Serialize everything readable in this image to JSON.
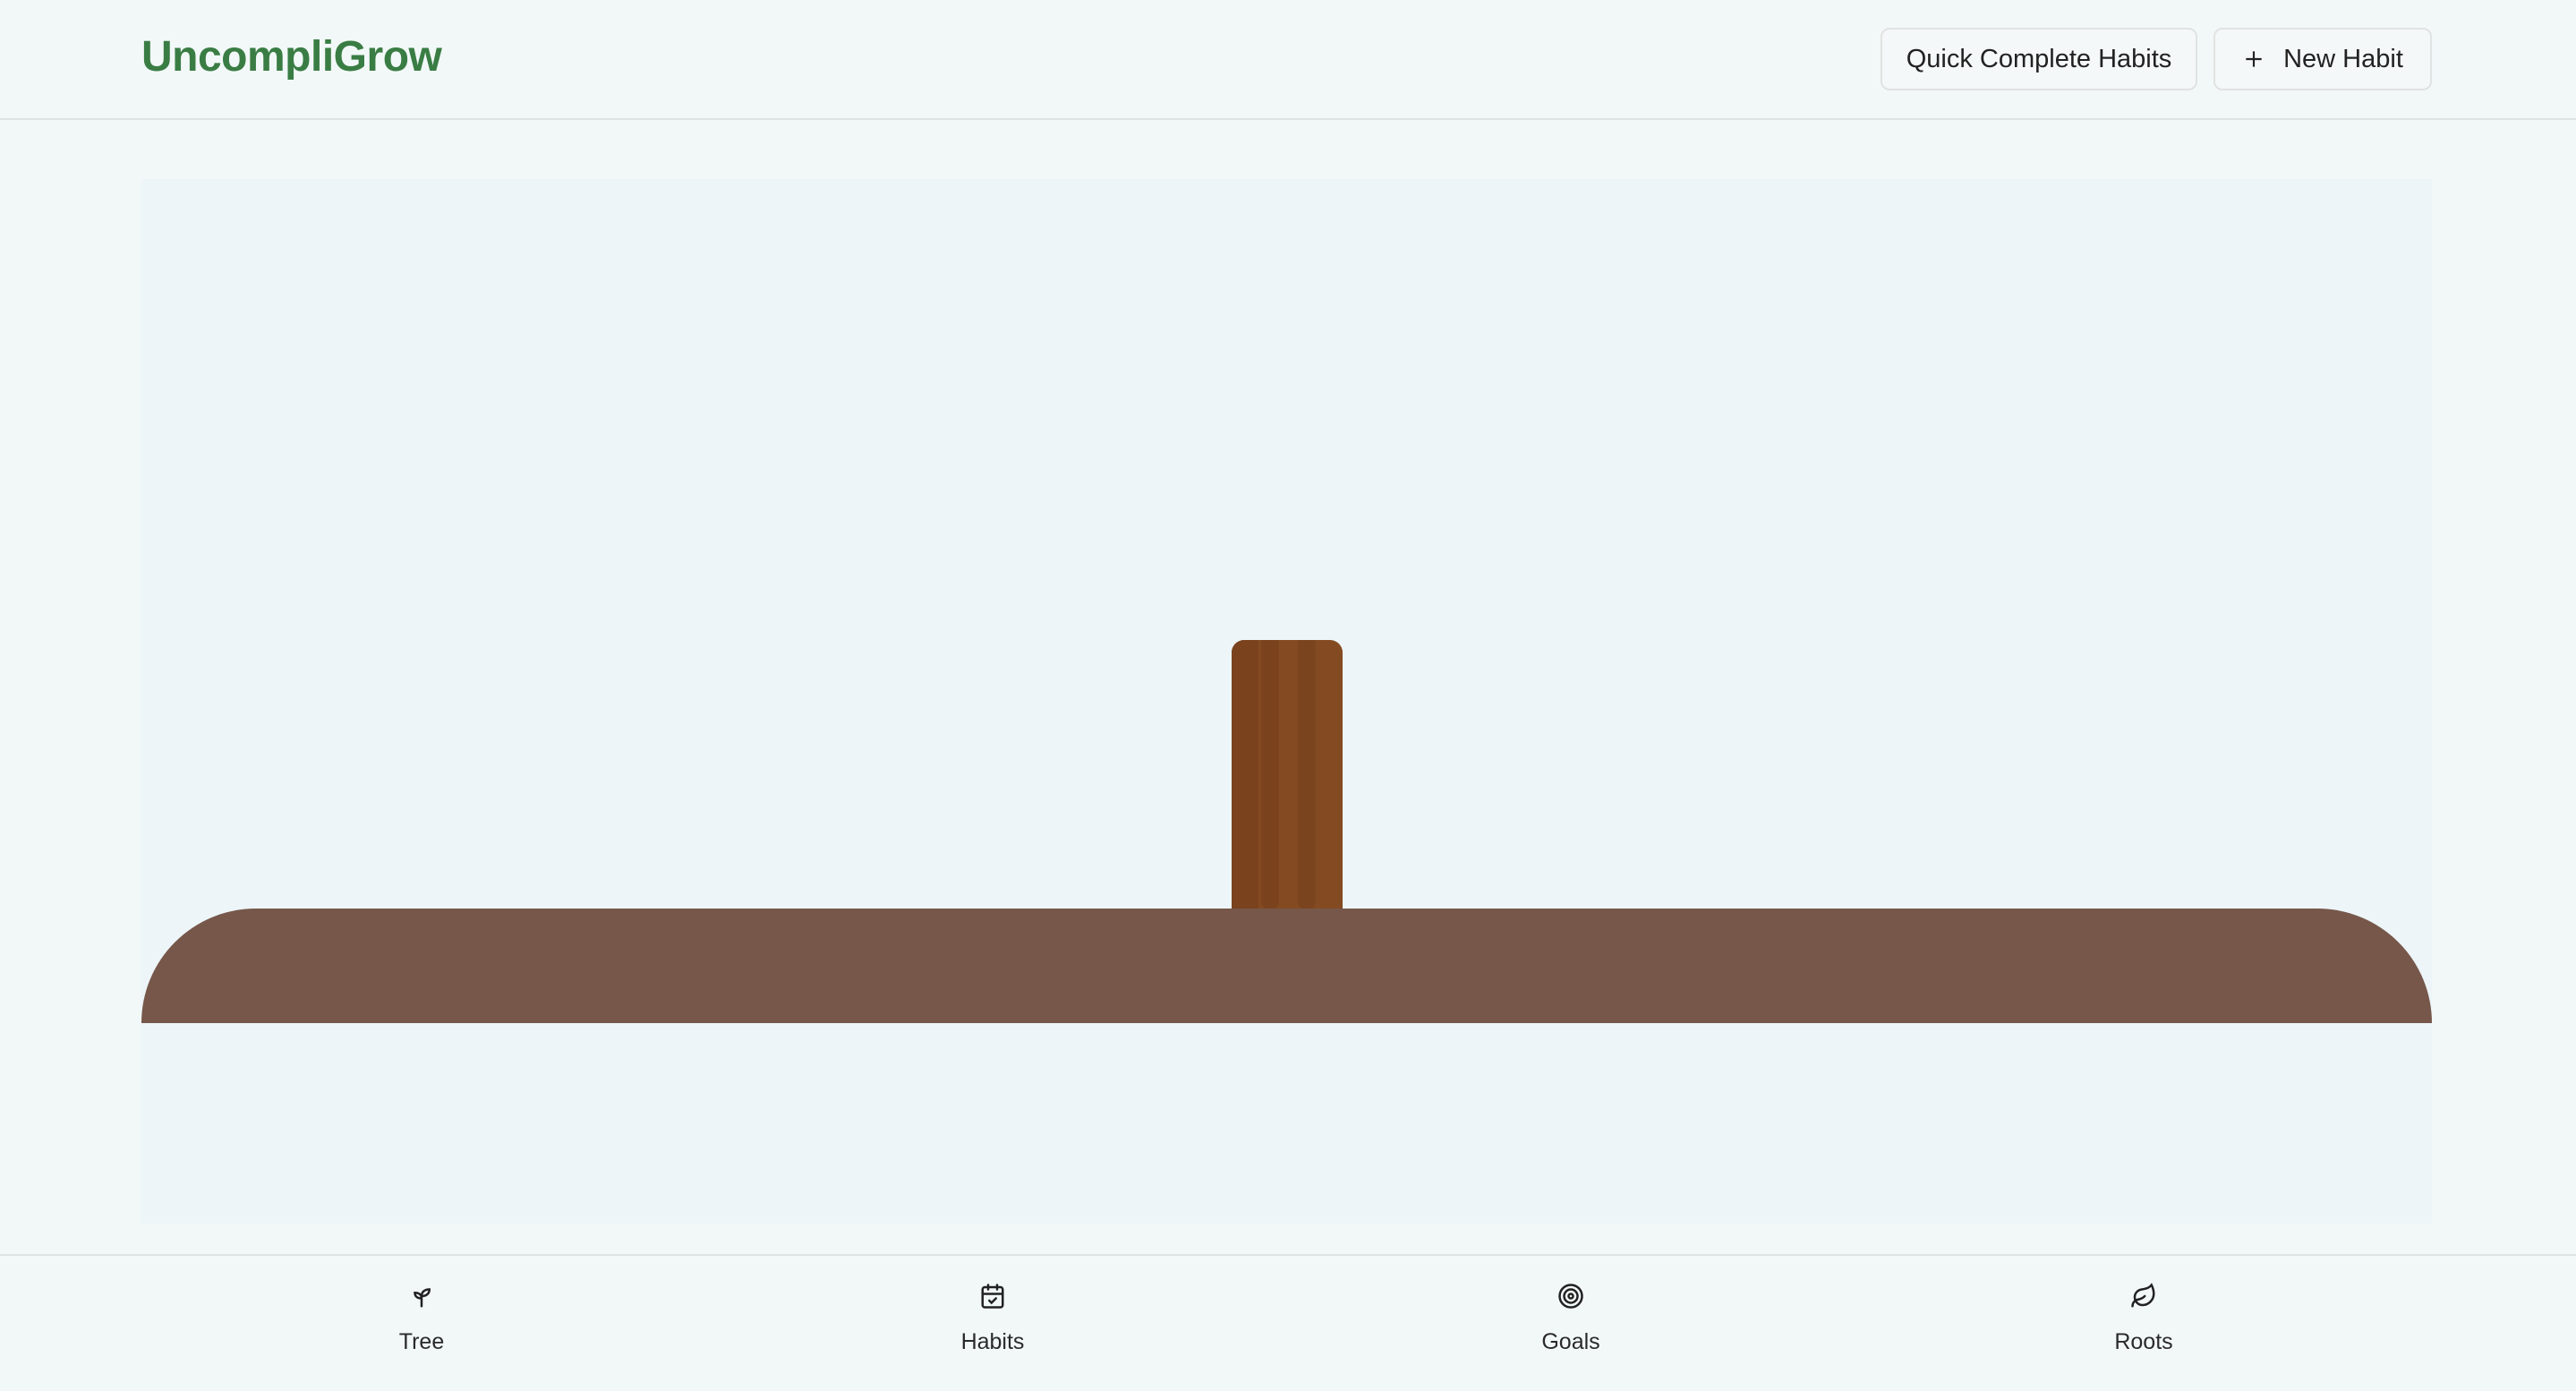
{
  "header": {
    "logo": "UncompliGrow",
    "quick_complete_label": "Quick Complete Habits",
    "new_habit_label": "New Habit"
  },
  "colors": {
    "brand": "#3a7d44",
    "trunk": "#844b22",
    "ground": "#76574a",
    "panel": "#edf5f8"
  },
  "nav": [
    {
      "label": "Tree",
      "icon": "sprout-icon"
    },
    {
      "label": "Habits",
      "icon": "calendar-check-icon"
    },
    {
      "label": "Goals",
      "icon": "target-icon"
    },
    {
      "label": "Roots",
      "icon": "leaf-icon"
    }
  ]
}
